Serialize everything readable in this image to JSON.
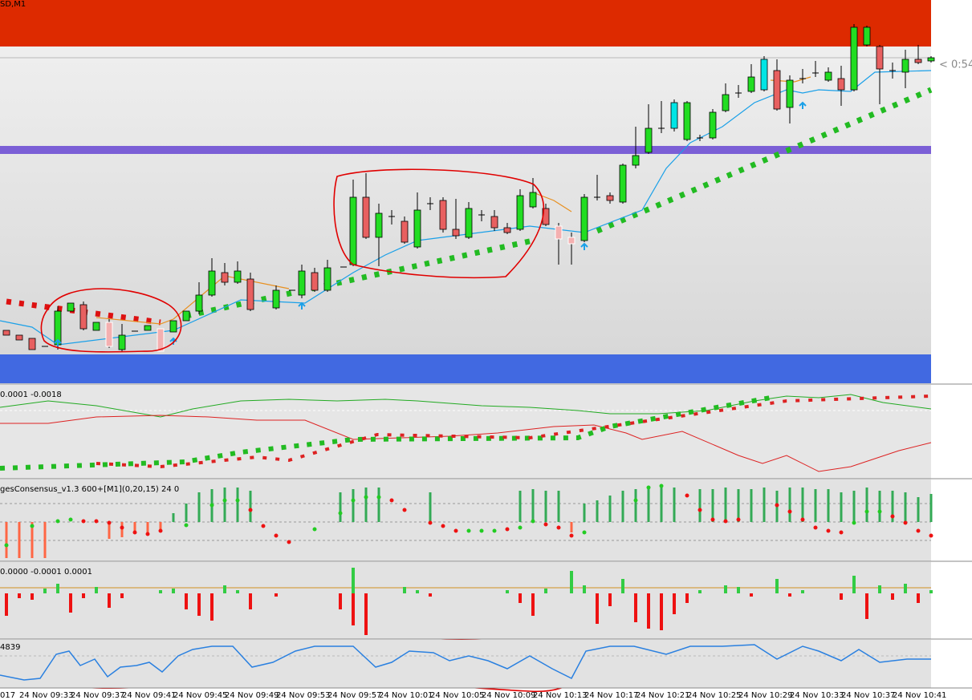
{
  "header": {
    "symbol": "SD,M1",
    "timer": "< 0:54"
  },
  "panels": {
    "indicator1": "0.0001 -0.0018",
    "indicator2": "gesConsensus_v1.3 600+[M1](0,20,15) 24 0",
    "indicator3": "0.0000 -0.0001 0.0001",
    "indicator4": "4839"
  },
  "time_axis": [
    "017",
    "24 Nov 09:33",
    "24 Nov 09:37",
    "24 Nov 09:41",
    "24 Nov 09:45",
    "24 Nov 09:49",
    "24 Nov 09:53",
    "24 Nov 09:57",
    "24 Nov 10:01",
    "24 Nov 10:05",
    "24 Nov 10:09",
    "24 Nov 10:13",
    "24 Nov 10:17",
    "24 Nov 10:21",
    "24 Nov 10:25",
    "24 Nov 10:29",
    "24 Nov 10:33",
    "24 Nov 10:37",
    "24 Nov 10:41"
  ]
}
